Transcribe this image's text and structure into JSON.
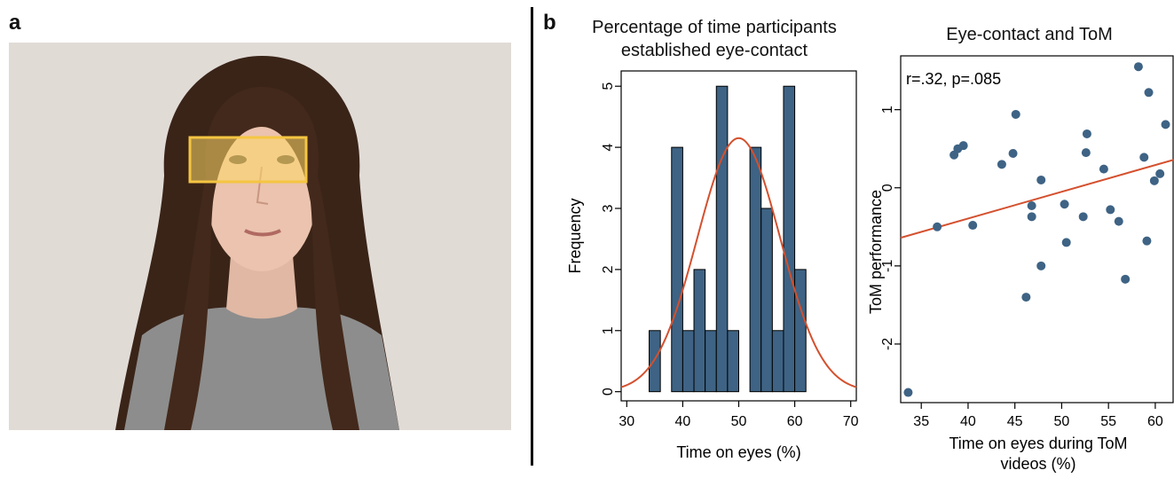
{
  "panels": {
    "a": "a",
    "b": "b"
  },
  "colors": {
    "bar": "#3e6384",
    "curve": "#d4502e",
    "highlight": "#ffd966",
    "dot": "#3e6384"
  },
  "photo": {
    "description_icon": "face-photo-icon"
  },
  "chart_data": [
    {
      "type": "bar",
      "title_line1": "Percentage of time participants",
      "title_line2": "established eye-contact",
      "xlabel": "Time on eyes (%)",
      "ylabel": "Frequency",
      "xlim": [
        29,
        71
      ],
      "ylim": [
        -0.15,
        5.25
      ],
      "xticks": [
        30,
        40,
        50,
        60,
        70
      ],
      "yticks": [
        0,
        1,
        2,
        3,
        4,
        5
      ],
      "bin_width": 2,
      "bins": [
        {
          "x0": 34,
          "count": 1
        },
        {
          "x0": 36,
          "count": 0
        },
        {
          "x0": 38,
          "count": 4
        },
        {
          "x0": 40,
          "count": 1
        },
        {
          "x0": 42,
          "count": 2
        },
        {
          "x0": 44,
          "count": 1
        },
        {
          "x0": 46,
          "count": 5
        },
        {
          "x0": 48,
          "count": 1
        },
        {
          "x0": 50,
          "count": 0
        },
        {
          "x0": 52,
          "count": 4
        },
        {
          "x0": 54,
          "count": 3
        },
        {
          "x0": 56,
          "count": 1
        },
        {
          "x0": 58,
          "count": 5
        },
        {
          "x0": 60,
          "count": 2
        }
      ],
      "normal_curve": {
        "mean": 50,
        "sd": 7.4,
        "peak": 4.15
      }
    },
    {
      "type": "scatter",
      "title": "Eye-contact and ToM",
      "annotation": "r=.32, p=.085",
      "xlabel_line1": "Time on eyes during ToM",
      "xlabel_line2": "videos (%)",
      "ylabel": "ToM performance",
      "xlim": [
        32.8,
        62
      ],
      "ylim": [
        -2.75,
        1.7
      ],
      "xticks": [
        35,
        40,
        45,
        50,
        55,
        60
      ],
      "yticks": [
        -2,
        -1,
        0,
        1
      ],
      "points": [
        [
          33.6,
          -2.62
        ],
        [
          36.7,
          -0.5
        ],
        [
          38.5,
          0.42
        ],
        [
          38.9,
          0.5
        ],
        [
          39.5,
          0.54
        ],
        [
          40.5,
          -0.48
        ],
        [
          43.6,
          0.3
        ],
        [
          44.8,
          0.44
        ],
        [
          45.1,
          0.94
        ],
        [
          46.2,
          -1.4
        ],
        [
          46.8,
          -0.23
        ],
        [
          46.8,
          -0.37
        ],
        [
          47.8,
          0.1
        ],
        [
          47.8,
          -1.0
        ],
        [
          50.3,
          -0.21
        ],
        [
          50.5,
          -0.7
        ],
        [
          52.3,
          -0.37
        ],
        [
          52.6,
          0.45
        ],
        [
          52.7,
          0.69
        ],
        [
          54.5,
          0.24
        ],
        [
          55.2,
          -0.28
        ],
        [
          56.1,
          -0.43
        ],
        [
          56.8,
          -1.17
        ],
        [
          58.2,
          1.55
        ],
        [
          58.8,
          0.39
        ],
        [
          59.1,
          -0.68
        ],
        [
          59.3,
          1.22
        ],
        [
          59.9,
          0.09
        ],
        [
          60.5,
          0.18
        ],
        [
          61.1,
          0.81
        ]
      ],
      "fit_line": {
        "x0": 32.8,
        "y0": -0.64,
        "x1": 62,
        "y1": 0.36
      }
    }
  ]
}
